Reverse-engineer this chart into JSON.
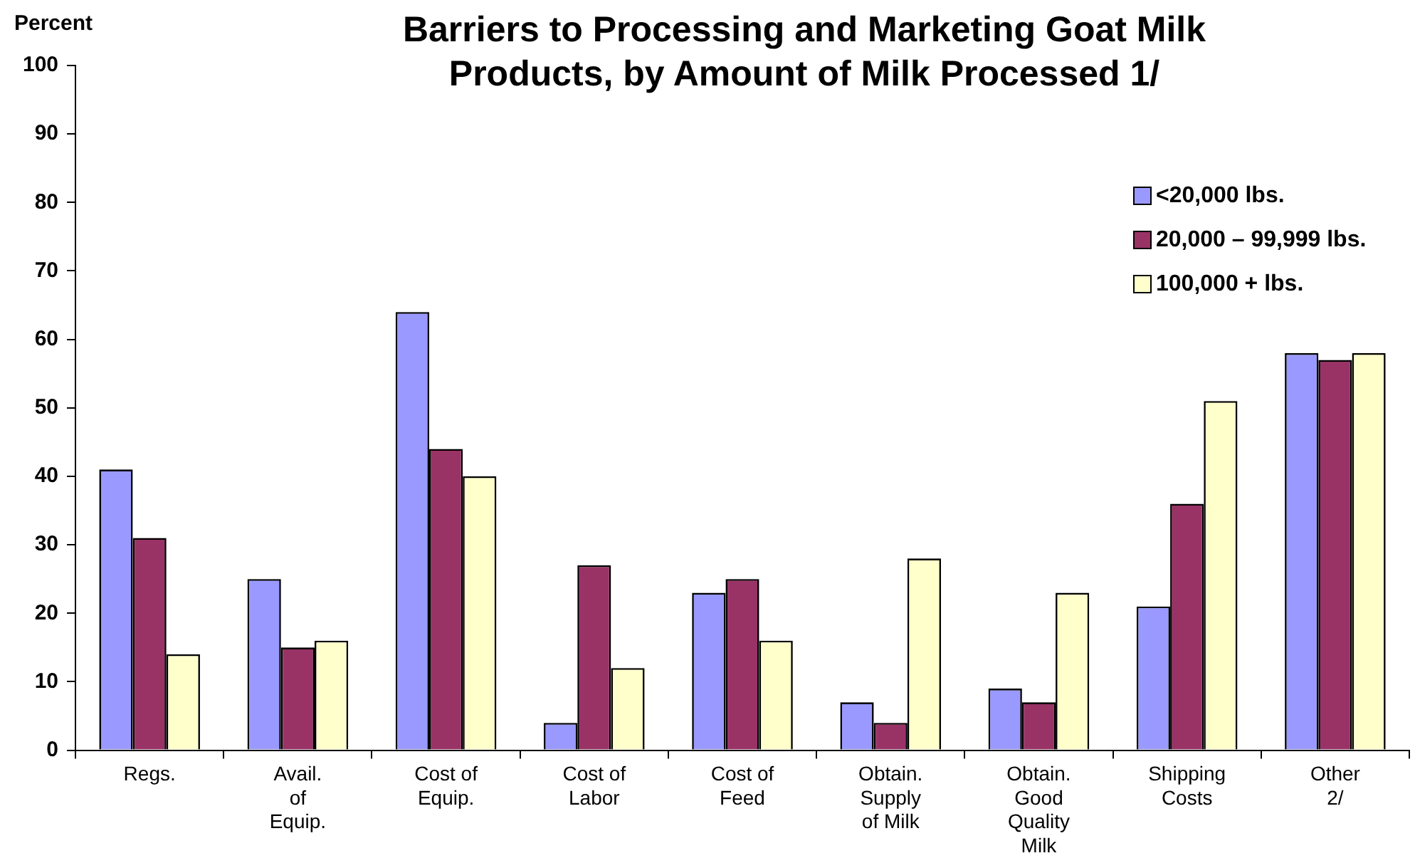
{
  "chart_data": {
    "type": "bar",
    "title": "Barriers to Processing and Marketing Goat Milk Products, by Amount of Milk Processed 1/",
    "ylabel": "Percent",
    "categories": [
      "Regs.",
      "Avail.\nof\nEquip.",
      "Cost of\nEquip.",
      "Cost of\nLabor",
      "Cost of\nFeed",
      "Obtain.\nSupply\nof Milk",
      "Obtain.\nGood\nQuality\nMilk",
      "Shipping\nCosts",
      "Other\n2/"
    ],
    "series": [
      {
        "name": "<20,000 lbs.",
        "color": "#9999ff",
        "values": [
          41,
          25,
          64,
          4,
          23,
          7,
          9,
          21,
          58
        ]
      },
      {
        "name": "20,000 – 99,999 lbs.",
        "color": "#993366",
        "values": [
          31,
          15,
          44,
          27,
          25,
          4,
          7,
          36,
          57
        ]
      },
      {
        "name": "100,000 + lbs.",
        "color": "#ffffcc",
        "values": [
          14,
          16,
          40,
          12,
          16,
          28,
          23,
          51,
          58
        ]
      }
    ],
    "ylim": [
      0,
      100
    ],
    "yticks": [
      0,
      10,
      20,
      30,
      40,
      50,
      60,
      70,
      80,
      90,
      100
    ],
    "legend": "top right"
  }
}
